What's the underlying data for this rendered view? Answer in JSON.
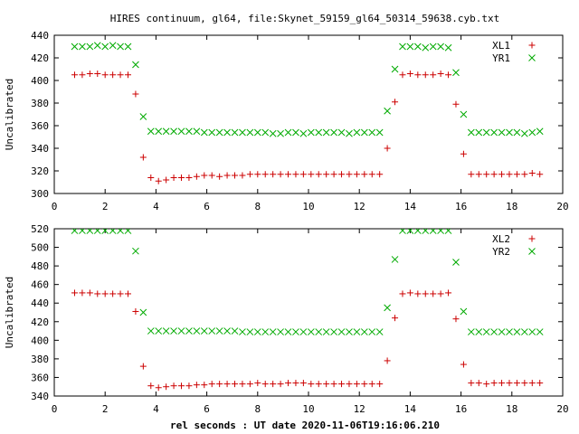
{
  "title": "HIRES continuum, gl64, file:Skynet_59159_gl64_50314_59638.cyb.txt",
  "xlabel": "rel seconds : UT date 2020-11-06T19:16:06.210",
  "colors": {
    "red": "#cc0000",
    "green": "#00aa00"
  },
  "chart_data": [
    {
      "type": "scatter",
      "ylabel": "Uncalibrated",
      "xlim": [
        0,
        20
      ],
      "ylim": [
        300,
        440
      ],
      "xticks": [
        "0",
        "2",
        "4",
        "6",
        "8",
        "10",
        "12",
        "14",
        "16",
        "18",
        "20"
      ],
      "yticks": [
        "300",
        "320",
        "340",
        "360",
        "380",
        "400",
        "420",
        "440"
      ],
      "legend": "top-right",
      "series": [
        {
          "name": "XL1",
          "marker": "plus",
          "color": "#cc0000",
          "x": [
            0.8,
            1.1,
            1.4,
            1.7,
            2.0,
            2.3,
            2.6,
            2.9,
            3.2,
            3.5,
            3.8,
            4.1,
            4.4,
            4.7,
            5.0,
            5.3,
            5.6,
            5.9,
            6.2,
            6.5,
            6.8,
            7.1,
            7.4,
            7.7,
            8.0,
            8.3,
            8.6,
            8.9,
            9.2,
            9.5,
            9.8,
            10.1,
            10.4,
            10.7,
            11.0,
            11.3,
            11.6,
            11.9,
            12.2,
            12.5,
            12.8,
            13.1,
            13.4,
            13.7,
            14.0,
            14.3,
            14.6,
            14.9,
            15.2,
            15.5,
            15.8,
            16.1,
            16.4,
            16.7,
            17.0,
            17.3,
            17.6,
            17.9,
            18.2,
            18.5,
            18.8,
            19.1
          ],
          "y": [
            405,
            405,
            406,
            406,
            405,
            405,
            405,
            405,
            388,
            332,
            314,
            311,
            312,
            314,
            314,
            314,
            315,
            316,
            316,
            315,
            316,
            316,
            316,
            317,
            317,
            317,
            317,
            317,
            317,
            317,
            317,
            317,
            317,
            317,
            317,
            317,
            317,
            317,
            317,
            317,
            317,
            340,
            381,
            405,
            406,
            405,
            405,
            405,
            406,
            405,
            379,
            335,
            317,
            317,
            317,
            317,
            317,
            317,
            317,
            317,
            318,
            317
          ]
        },
        {
          "name": "YR1",
          "marker": "cross",
          "color": "#00aa00",
          "x": [
            0.8,
            1.1,
            1.4,
            1.7,
            2.0,
            2.3,
            2.6,
            2.9,
            3.2,
            3.5,
            3.8,
            4.1,
            4.4,
            4.7,
            5.0,
            5.3,
            5.6,
            5.9,
            6.2,
            6.5,
            6.8,
            7.1,
            7.4,
            7.7,
            8.0,
            8.3,
            8.6,
            8.9,
            9.2,
            9.5,
            9.8,
            10.1,
            10.4,
            10.7,
            11.0,
            11.3,
            11.6,
            11.9,
            12.2,
            12.5,
            12.8,
            13.1,
            13.4,
            13.7,
            14.0,
            14.3,
            14.6,
            14.9,
            15.2,
            15.5,
            15.8,
            16.1,
            16.4,
            16.7,
            17.0,
            17.3,
            17.6,
            17.9,
            18.2,
            18.5,
            18.8,
            19.1
          ],
          "y": [
            430,
            430,
            430,
            431,
            430,
            431,
            430,
            430,
            414,
            368,
            355,
            355,
            355,
            355,
            355,
            355,
            355,
            354,
            354,
            354,
            354,
            354,
            354,
            354,
            354,
            354,
            353,
            353,
            354,
            354,
            353,
            354,
            354,
            354,
            354,
            354,
            353,
            354,
            354,
            354,
            354,
            373,
            410,
            430,
            430,
            430,
            429,
            430,
            430,
            429,
            407,
            370,
            354,
            354,
            354,
            354,
            354,
            354,
            354,
            353,
            354,
            355
          ]
        }
      ]
    },
    {
      "type": "scatter",
      "ylabel": "Uncalibrated",
      "xlim": [
        0,
        20
      ],
      "ylim": [
        340,
        520
      ],
      "xticks": [
        "0",
        "2",
        "4",
        "6",
        "8",
        "10",
        "12",
        "14",
        "16",
        "18",
        "20"
      ],
      "yticks": [
        "340",
        "360",
        "380",
        "400",
        "420",
        "440",
        "460",
        "480",
        "500",
        "520"
      ],
      "legend": "top-right",
      "series": [
        {
          "name": "XL2",
          "marker": "plus",
          "color": "#cc0000",
          "x": [
            0.8,
            1.1,
            1.4,
            1.7,
            2.0,
            2.3,
            2.6,
            2.9,
            3.2,
            3.5,
            3.8,
            4.1,
            4.4,
            4.7,
            5.0,
            5.3,
            5.6,
            5.9,
            6.2,
            6.5,
            6.8,
            7.1,
            7.4,
            7.7,
            8.0,
            8.3,
            8.6,
            8.9,
            9.2,
            9.5,
            9.8,
            10.1,
            10.4,
            10.7,
            11.0,
            11.3,
            11.6,
            11.9,
            12.2,
            12.5,
            12.8,
            13.1,
            13.4,
            13.7,
            14.0,
            14.3,
            14.6,
            14.9,
            15.2,
            15.5,
            15.8,
            16.1,
            16.4,
            16.7,
            17.0,
            17.3,
            17.6,
            17.9,
            18.2,
            18.5,
            18.8,
            19.1
          ],
          "y": [
            451,
            451,
            451,
            450,
            450,
            450,
            450,
            450,
            431,
            372,
            351,
            349,
            350,
            351,
            351,
            351,
            352,
            352,
            353,
            353,
            353,
            353,
            353,
            353,
            354,
            353,
            353,
            353,
            354,
            354,
            354,
            353,
            353,
            353,
            353,
            353,
            353,
            353,
            353,
            353,
            353,
            378,
            424,
            450,
            451,
            450,
            450,
            450,
            450,
            451,
            423,
            374,
            354,
            354,
            353,
            354,
            354,
            354,
            354,
            354,
            354,
            354
          ]
        },
        {
          "name": "YR2",
          "marker": "cross",
          "color": "#00aa00",
          "x": [
            0.8,
            1.1,
            1.4,
            1.7,
            2.0,
            2.3,
            2.6,
            2.9,
            3.2,
            3.5,
            3.8,
            4.1,
            4.4,
            4.7,
            5.0,
            5.3,
            5.6,
            5.9,
            6.2,
            6.5,
            6.8,
            7.1,
            7.4,
            7.7,
            8.0,
            8.3,
            8.6,
            8.9,
            9.2,
            9.5,
            9.8,
            10.1,
            10.4,
            10.7,
            11.0,
            11.3,
            11.6,
            11.9,
            12.2,
            12.5,
            12.8,
            13.1,
            13.4,
            13.7,
            14.0,
            14.3,
            14.6,
            14.9,
            15.2,
            15.5,
            15.8,
            16.1,
            16.4,
            16.7,
            17.0,
            17.3,
            17.6,
            17.9,
            18.2,
            18.5,
            18.8,
            19.1
          ],
          "y": [
            518,
            518,
            518,
            518,
            518,
            518,
            518,
            518,
            496,
            430,
            410,
            410,
            410,
            410,
            410,
            410,
            410,
            410,
            410,
            410,
            410,
            410,
            409,
            409,
            409,
            409,
            409,
            409,
            409,
            409,
            409,
            409,
            409,
            409,
            409,
            409,
            409,
            409,
            409,
            409,
            409,
            435,
            487,
            518,
            518,
            518,
            518,
            518,
            518,
            518,
            484,
            431,
            409,
            409,
            409,
            409,
            409,
            409,
            409,
            409,
            409,
            409
          ]
        }
      ]
    }
  ]
}
